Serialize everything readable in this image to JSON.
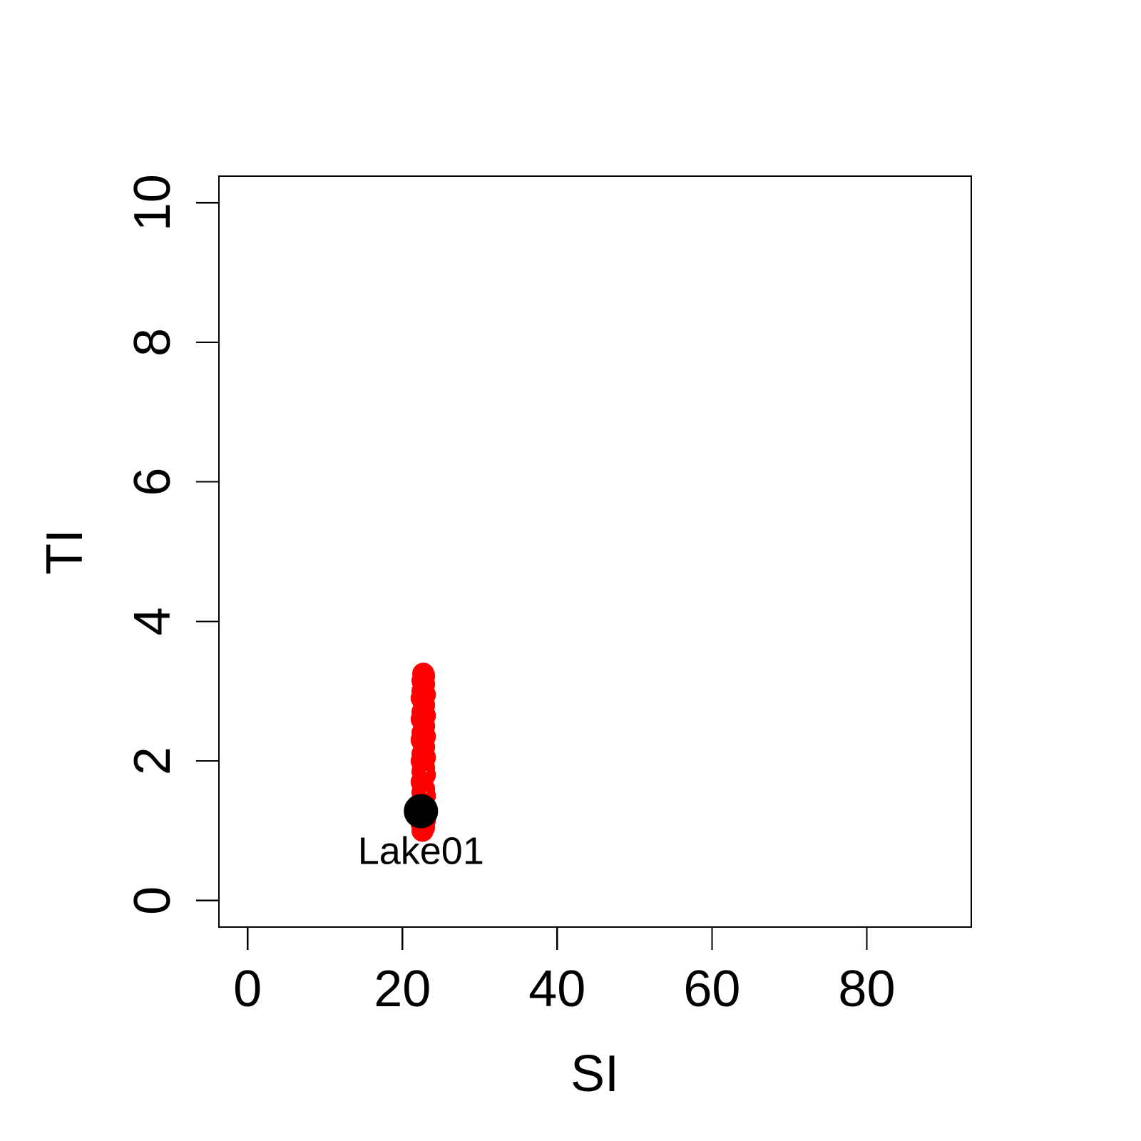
{
  "chart_data": {
    "type": "scatter",
    "title": "",
    "xlabel": "SI",
    "ylabel": "TI",
    "xlim": [
      -3.7,
      93.5
    ],
    "ylim": [
      -0.38,
      10.38
    ],
    "xticks": [
      0,
      20,
      40,
      60,
      80
    ],
    "yticks": [
      0,
      2,
      4,
      6,
      8,
      10
    ],
    "grid": false,
    "legend": "none",
    "series": [
      {
        "color": "#ff0000",
        "marker": "open-circle",
        "points": [
          [
            22.6,
            1.0
          ],
          [
            22.8,
            1.05
          ],
          [
            22.5,
            1.1
          ],
          [
            22.9,
            1.15
          ],
          [
            22.6,
            1.2
          ],
          [
            22.8,
            1.3
          ],
          [
            22.5,
            1.4
          ],
          [
            22.9,
            1.5
          ],
          [
            22.6,
            1.55
          ],
          [
            22.8,
            1.6
          ],
          [
            22.5,
            1.7
          ],
          [
            22.9,
            1.8
          ],
          [
            22.6,
            1.85
          ],
          [
            22.8,
            1.9
          ],
          [
            22.5,
            2.0
          ],
          [
            22.9,
            2.05
          ],
          [
            22.6,
            2.1
          ],
          [
            22.8,
            2.2
          ],
          [
            22.5,
            2.3
          ],
          [
            22.9,
            2.35
          ],
          [
            22.6,
            2.4
          ],
          [
            22.8,
            2.5
          ],
          [
            22.5,
            2.6
          ],
          [
            22.9,
            2.65
          ],
          [
            22.6,
            2.7
          ],
          [
            22.8,
            2.8
          ],
          [
            22.5,
            2.9
          ],
          [
            22.9,
            2.95
          ],
          [
            22.6,
            3.0
          ],
          [
            22.8,
            3.1
          ],
          [
            22.6,
            3.15
          ],
          [
            22.8,
            3.22
          ],
          [
            22.7,
            3.25
          ]
        ]
      },
      {
        "color": "#000000",
        "marker": "filled-circle",
        "points": [
          [
            22.4,
            1.28
          ]
        ],
        "labels": [
          "Lake01"
        ]
      }
    ]
  }
}
